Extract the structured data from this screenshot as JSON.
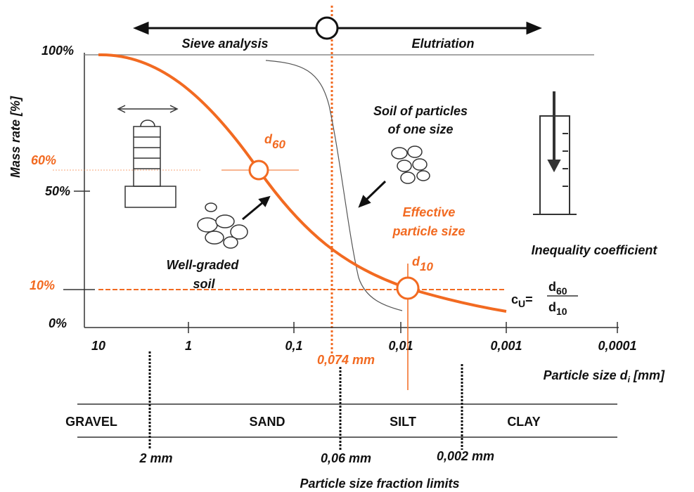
{
  "header": {
    "left_method": "Sieve analysis",
    "right_method": "Elutriation"
  },
  "y_axis": {
    "title": "Mass rate [%]",
    "ticks": [
      "100%",
      "60%",
      "50%",
      "10%",
      "0%"
    ]
  },
  "x_axis": {
    "ticks": [
      "10",
      "1",
      "0,1",
      "0,01",
      "0,001",
      "0,0001"
    ],
    "title": "Particle size d",
    "title_sub": "i",
    "title_unit": "[mm]",
    "marker": "0,074 mm"
  },
  "annotations": {
    "d60": {
      "main": "d",
      "sub": "60"
    },
    "d10": {
      "main": "d",
      "sub": "10"
    },
    "uniform_soil": [
      "Soil of particles",
      "of one size"
    ],
    "effective_size": [
      "Effective",
      "particle size"
    ],
    "well_graded": [
      "Well-graded",
      "soil"
    ],
    "coefficient_title": "Inequality coefficient",
    "coefficient_formula": {
      "lhs": "c",
      "lhs_sub": "U",
      "eq": "=",
      "num": "d",
      "num_sub": "60",
      "den": "d",
      "den_sub": "10"
    }
  },
  "fractions": {
    "names": [
      "GRAVEL",
      "SAND",
      "SILT",
      "CLAY"
    ],
    "limits": [
      "2 mm",
      "0,06 mm",
      "0,002 mm"
    ],
    "title": "Particle size fraction limits"
  }
}
